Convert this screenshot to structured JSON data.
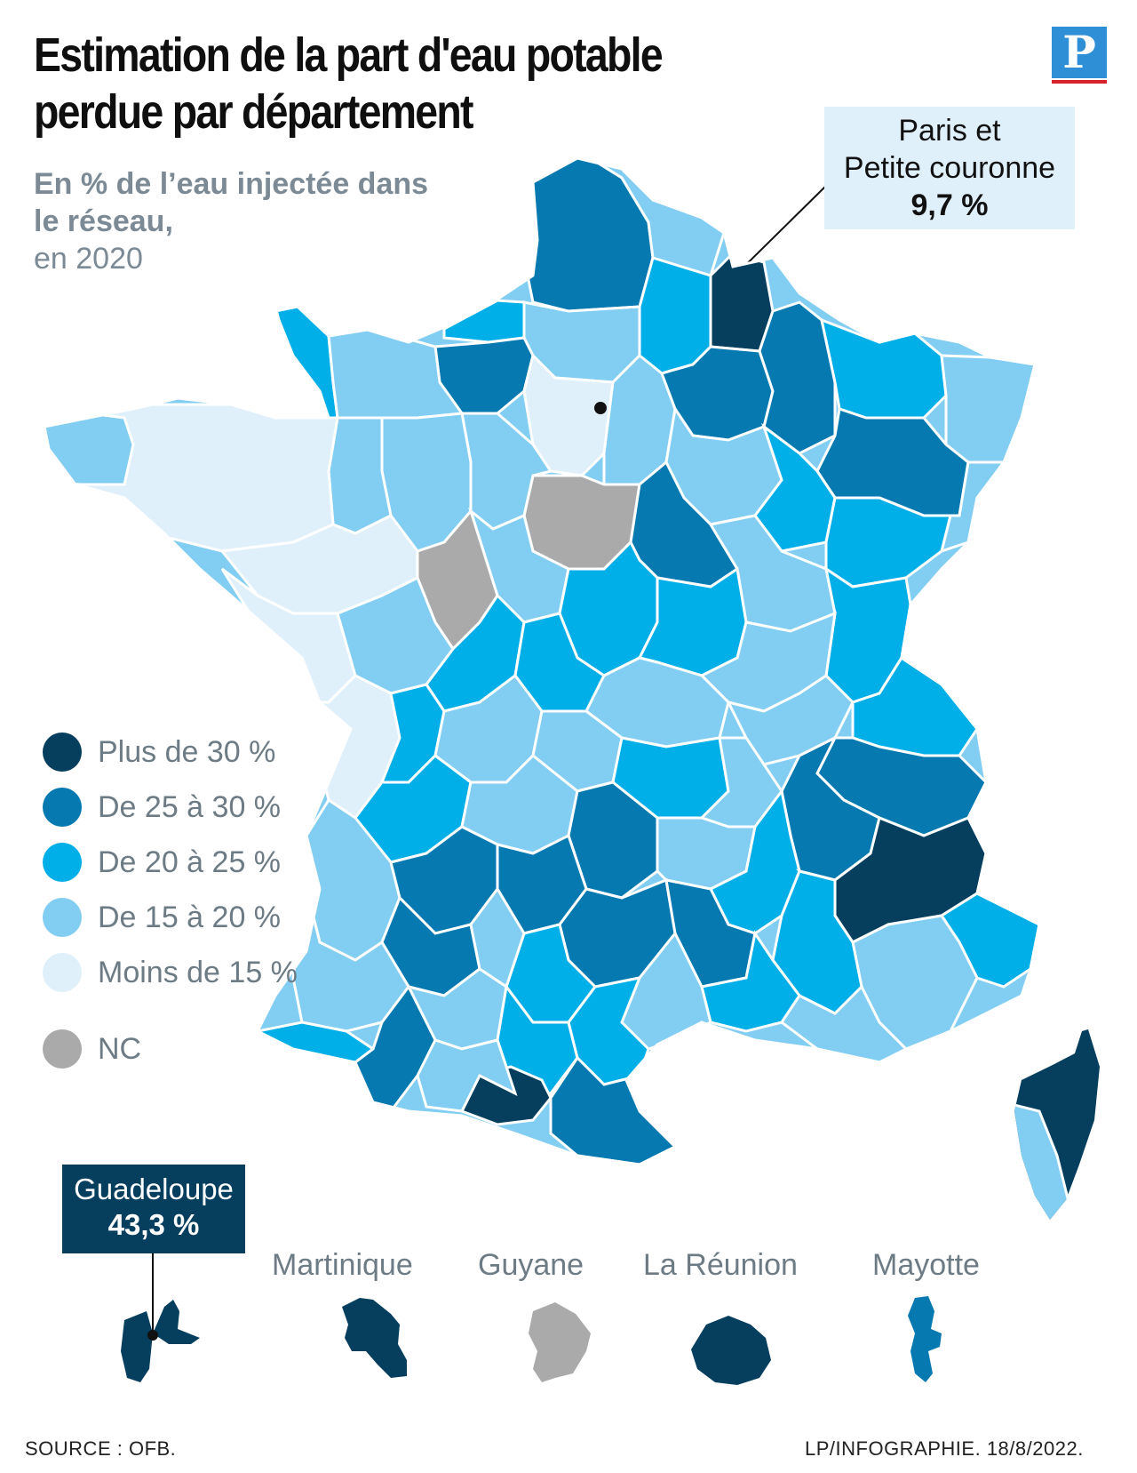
{
  "title": "Estimation de la part d'eau potable perdue par département",
  "subtitle_bold": "En % de l’eau injectée dans le réseau,",
  "subtitle_year": "en 2020",
  "logo_letter": "P",
  "paris_callout": {
    "line1": "Paris et",
    "line2": "Petite couronne",
    "value": "9,7 %"
  },
  "colors": {
    "plus30": "#063f5e",
    "d25_30": "#0679b0",
    "d20_25": "#00aee8",
    "d15_20": "#82cdf2",
    "moins15": "#dff0fb",
    "nc": "#aaaaaa"
  },
  "legend": [
    {
      "label": "Plus de 30 %",
      "color": "#063f5e"
    },
    {
      "label": "De 25 à 30 %",
      "color": "#0679b0"
    },
    {
      "label": "De 20 à 25 %",
      "color": "#00aee8"
    },
    {
      "label": "De 15 à 20 %",
      "color": "#82cdf2"
    },
    {
      "label": "Moins de 15 %",
      "color": "#dff0fb"
    },
    {
      "label": "NC",
      "color": "#aaaaaa"
    }
  ],
  "overseas": {
    "guadeloupe": {
      "name": "Guadeloupe",
      "value": "43,3 %"
    },
    "martinique": "Martinique",
    "guyane": "Guyane",
    "reunion": "La Réunion",
    "mayotte": "Mayotte"
  },
  "footer": {
    "source": "SOURCE : OFB.",
    "credit": "LP/INFOGRAPHIE.  18/8/2022."
  }
}
